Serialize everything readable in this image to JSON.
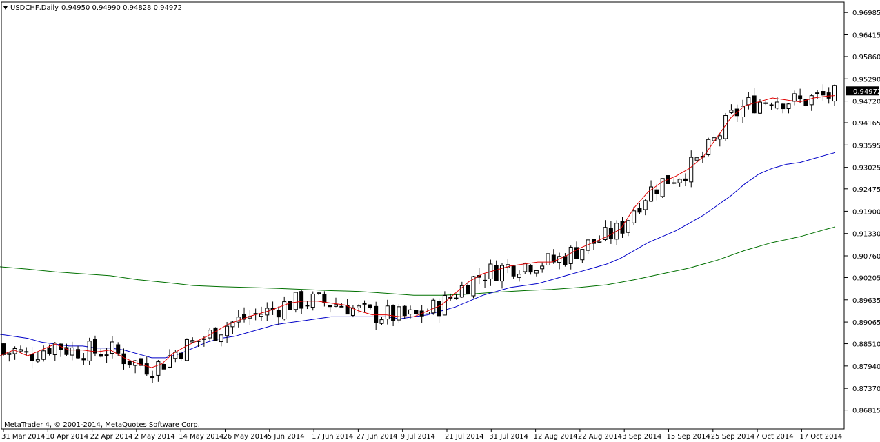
{
  "window": {
    "symbol_label": "USDCHF,Daily",
    "ohlc_label": "0.94950 0.94990 0.94828 0.94972",
    "copyright": "MetaTrader 4, © 2001-2014, MetaQuotes Software Corp.",
    "price_tag": "0.94972"
  },
  "colors": {
    "ma_fast": "#e00000",
    "ma_mid": "#0000c8",
    "ma_slow": "#007000",
    "candle_up": "#ffffff",
    "candle_down": "#000000",
    "background": "#ffffff"
  },
  "chart_data": {
    "type": "candlestick",
    "title": "USDCHF,Daily",
    "ylim": [
      0.8672,
      0.972
    ],
    "y_ticks": [
      "0.96985",
      "0.96415",
      "0.95860",
      "0.95290",
      "0.94720",
      "0.94165",
      "0.93595",
      "0.93025",
      "0.92475",
      "0.91900",
      "0.91330",
      "0.90760",
      "0.90205",
      "0.89635",
      "0.89065",
      "0.88510",
      "0.87940",
      "0.87370",
      "0.86815"
    ],
    "x_ticks": [
      "31 Mar 2014",
      "10 Apr 2014",
      "22 Apr 2014",
      "2 May 2014",
      "14 May 2014",
      "26 May 2014",
      "5 Jun 2014",
      "17 Jun 2014",
      "27 Jun 2014",
      "9 Jul 2014",
      "21 Jul 2014",
      "31 Jul 2014",
      "12 Aug 2014",
      "22 Aug 2014",
      "3 Sep 2014",
      "15 Sep 2014",
      "25 Sep 2014",
      "7 Oct 2014",
      "17 Oct 2014"
    ],
    "last_price": 0.94972,
    "series": [
      {
        "kind": "ma",
        "color": "#e00000",
        "values": [
          [
            0,
            0.882
          ],
          [
            20,
            0.8835
          ],
          [
            40,
            0.882
          ],
          [
            60,
            0.8835
          ],
          [
            80,
            0.885
          ],
          [
            100,
            0.8835
          ],
          [
            120,
            0.8835
          ],
          [
            140,
            0.883
          ],
          [
            160,
            0.8835
          ],
          [
            180,
            0.8815
          ],
          [
            200,
            0.88
          ],
          [
            220,
            0.879
          ],
          [
            235,
            0.88
          ],
          [
            250,
            0.8825
          ],
          [
            270,
            0.8845
          ],
          [
            300,
            0.887
          ],
          [
            330,
            0.89
          ],
          [
            360,
            0.892
          ],
          [
            390,
            0.8935
          ],
          [
            420,
            0.8955
          ],
          [
            440,
            0.896
          ],
          [
            460,
            0.896
          ],
          [
            480,
            0.8955
          ],
          [
            500,
            0.895
          ],
          [
            520,
            0.8935
          ],
          [
            540,
            0.8925
          ],
          [
            560,
            0.8925
          ],
          [
            580,
            0.892
          ],
          [
            600,
            0.892
          ],
          [
            620,
            0.8935
          ],
          [
            640,
            0.895
          ],
          [
            660,
            0.898
          ],
          [
            680,
            0.901
          ],
          [
            700,
            0.903
          ],
          [
            720,
            0.904
          ],
          [
            740,
            0.905
          ],
          [
            760,
            0.9055
          ],
          [
            780,
            0.906
          ],
          [
            800,
            0.906
          ],
          [
            820,
            0.9075
          ],
          [
            840,
            0.9095
          ],
          [
            860,
            0.911
          ],
          [
            880,
            0.9125
          ],
          [
            900,
            0.9145
          ],
          [
            920,
            0.92
          ],
          [
            940,
            0.924
          ],
          [
            960,
            0.9265
          ],
          [
            980,
            0.928
          ],
          [
            1000,
            0.93
          ],
          [
            1020,
            0.933
          ],
          [
            1040,
            0.938
          ],
          [
            1060,
            0.943
          ],
          [
            1080,
            0.946
          ],
          [
            1100,
            0.947
          ],
          [
            1120,
            0.948
          ],
          [
            1140,
            0.9475
          ],
          [
            1160,
            0.947
          ],
          [
            1180,
            0.948
          ],
          [
            1200,
            0.9485
          ],
          [
            1211,
            0.9486
          ]
        ]
      },
      {
        "kind": "ma",
        "color": "#0000c8",
        "values": [
          [
            0,
            0.8875
          ],
          [
            20,
            0.887
          ],
          [
            40,
            0.8865
          ],
          [
            60,
            0.8855
          ],
          [
            80,
            0.885
          ],
          [
            100,
            0.8845
          ],
          [
            120,
            0.8845
          ],
          [
            140,
            0.884
          ],
          [
            160,
            0.884
          ],
          [
            180,
            0.8835
          ],
          [
            200,
            0.8825
          ],
          [
            220,
            0.8815
          ],
          [
            240,
            0.8815
          ],
          [
            260,
            0.8825
          ],
          [
            280,
            0.884
          ],
          [
            300,
            0.8855
          ],
          [
            320,
            0.8865
          ],
          [
            340,
            0.887
          ],
          [
            360,
            0.888
          ],
          [
            380,
            0.889
          ],
          [
            400,
            0.89
          ],
          [
            420,
            0.8905
          ],
          [
            440,
            0.891
          ],
          [
            460,
            0.8915
          ],
          [
            480,
            0.892
          ],
          [
            500,
            0.892
          ],
          [
            520,
            0.892
          ],
          [
            540,
            0.892
          ],
          [
            560,
            0.892
          ],
          [
            580,
            0.8915
          ],
          [
            600,
            0.892
          ],
          [
            620,
            0.8925
          ],
          [
            640,
            0.8935
          ],
          [
            660,
            0.8945
          ],
          [
            680,
            0.896
          ],
          [
            700,
            0.8975
          ],
          [
            720,
            0.8985
          ],
          [
            740,
            0.8995
          ],
          [
            760,
            0.9
          ],
          [
            780,
            0.9005
          ],
          [
            800,
            0.9015
          ],
          [
            820,
            0.9025
          ],
          [
            840,
            0.9035
          ],
          [
            860,
            0.9045
          ],
          [
            880,
            0.9055
          ],
          [
            900,
            0.907
          ],
          [
            920,
            0.909
          ],
          [
            940,
            0.911
          ],
          [
            960,
            0.9125
          ],
          [
            980,
            0.914
          ],
          [
            1000,
            0.916
          ],
          [
            1020,
            0.918
          ],
          [
            1040,
            0.9205
          ],
          [
            1060,
            0.923
          ],
          [
            1080,
            0.926
          ],
          [
            1100,
            0.9285
          ],
          [
            1120,
            0.93
          ],
          [
            1140,
            0.931
          ],
          [
            1160,
            0.9315
          ],
          [
            1180,
            0.9325
          ],
          [
            1200,
            0.9335
          ],
          [
            1211,
            0.934
          ]
        ]
      },
      {
        "kind": "ma",
        "color": "#007000",
        "values": [
          [
            0,
            0.9048
          ],
          [
            40,
            0.9042
          ],
          [
            80,
            0.9035
          ],
          [
            120,
            0.903
          ],
          [
            160,
            0.9025
          ],
          [
            200,
            0.9015
          ],
          [
            240,
            0.9008
          ],
          [
            280,
            0.9
          ],
          [
            320,
            0.8997
          ],
          [
            360,
            0.8995
          ],
          [
            400,
            0.8993
          ],
          [
            440,
            0.899
          ],
          [
            480,
            0.8987
          ],
          [
            520,
            0.8985
          ],
          [
            560,
            0.898
          ],
          [
            600,
            0.8975
          ],
          [
            640,
            0.8975
          ],
          [
            680,
            0.8978
          ],
          [
            720,
            0.8983
          ],
          [
            760,
            0.8987
          ],
          [
            800,
            0.899
          ],
          [
            840,
            0.8995
          ],
          [
            880,
            0.9002
          ],
          [
            920,
            0.9015
          ],
          [
            960,
            0.903
          ],
          [
            1000,
            0.9045
          ],
          [
            1040,
            0.9065
          ],
          [
            1080,
            0.909
          ],
          [
            1120,
            0.911
          ],
          [
            1160,
            0.9125
          ],
          [
            1200,
            0.9145
          ],
          [
            1211,
            0.915
          ]
        ]
      }
    ]
  }
}
